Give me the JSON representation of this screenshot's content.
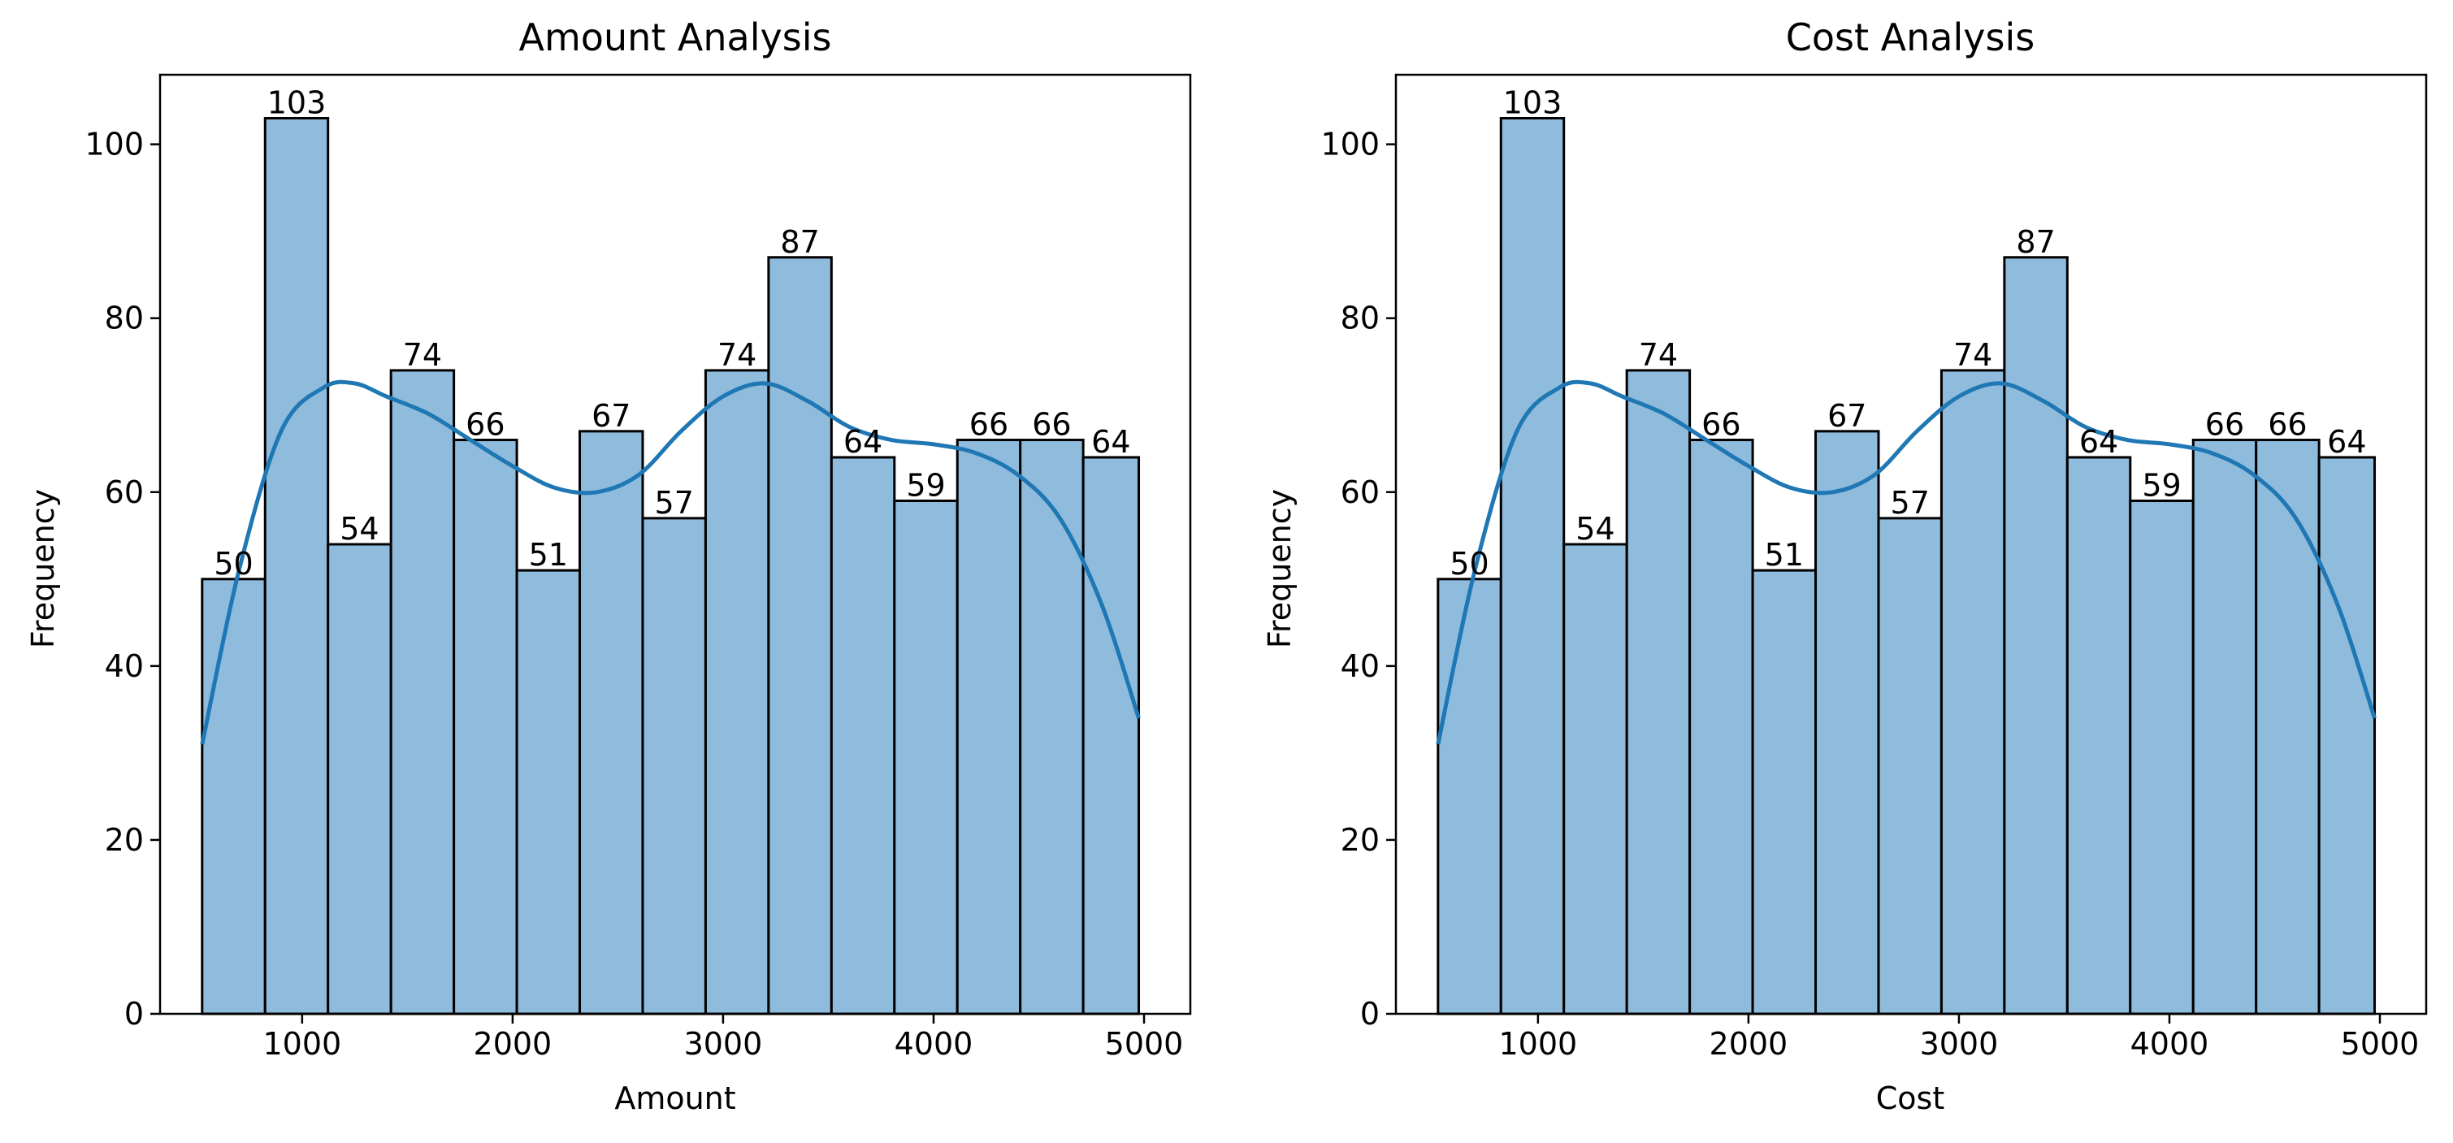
{
  "style": {
    "bar_fill": "#8fbbdc",
    "bar_edge": "#000000",
    "kde_line": "#1f77b4"
  },
  "chart_data": [
    {
      "type": "bar",
      "title": "Amount Analysis",
      "xlabel": "Amount",
      "ylabel": "Frequency",
      "xlim": [
        325,
        5220
      ],
      "ylim": [
        0,
        108
      ],
      "xticks": [
        1000,
        2000,
        3000,
        4000,
        5000
      ],
      "yticks": [
        0,
        20,
        40,
        60,
        80,
        100
      ],
      "bin_edges": [
        525,
        824,
        1123,
        1422,
        1721,
        2020,
        2319,
        2618,
        2917,
        3216,
        3515,
        3814,
        4113,
        4412,
        4711,
        4975
      ],
      "values": [
        50,
        103,
        54,
        74,
        66,
        51,
        67,
        57,
        74,
        87,
        64,
        59,
        66,
        66,
        64
      ],
      "kde": {
        "x": [
          525,
          700,
          900,
          1100,
          1250,
          1400,
          1600,
          1800,
          2000,
          2200,
          2400,
          2600,
          2800,
          3000,
          3200,
          3400,
          3600,
          3800,
          4000,
          4200,
          4400,
          4600,
          4800,
          4975
        ],
        "y": [
          31,
          51,
          67,
          72,
          72.5,
          71,
          69,
          66,
          63,
          60.5,
          60,
          62,
          67,
          71,
          72.5,
          70.5,
          67.5,
          66,
          65.5,
          64.5,
          62,
          57,
          47,
          34
        ]
      },
      "grid": false
    },
    {
      "type": "bar",
      "title": "Cost Analysis",
      "xlabel": "Cost",
      "ylabel": "Frequency",
      "xlim": [
        325,
        5220
      ],
      "ylim": [
        0,
        108
      ],
      "xticks": [
        1000,
        2000,
        3000,
        4000,
        5000
      ],
      "yticks": [
        0,
        20,
        40,
        60,
        80,
        100
      ],
      "bin_edges": [
        525,
        824,
        1123,
        1422,
        1721,
        2020,
        2319,
        2618,
        2917,
        3216,
        3515,
        3814,
        4113,
        4412,
        4711,
        4975
      ],
      "values": [
        50,
        103,
        54,
        74,
        66,
        51,
        67,
        57,
        74,
        87,
        64,
        59,
        66,
        66,
        64
      ],
      "kde": {
        "x": [
          525,
          700,
          900,
          1100,
          1250,
          1400,
          1600,
          1800,
          2000,
          2200,
          2400,
          2600,
          2800,
          3000,
          3200,
          3400,
          3600,
          3800,
          4000,
          4200,
          4400,
          4600,
          4800,
          4975
        ],
        "y": [
          31,
          51,
          67,
          72,
          72.5,
          71,
          69,
          66,
          63,
          60.5,
          60,
          62,
          67,
          71,
          72.5,
          70.5,
          67.5,
          66,
          65.5,
          64.5,
          62,
          57,
          47,
          34
        ]
      },
      "grid": false
    }
  ]
}
